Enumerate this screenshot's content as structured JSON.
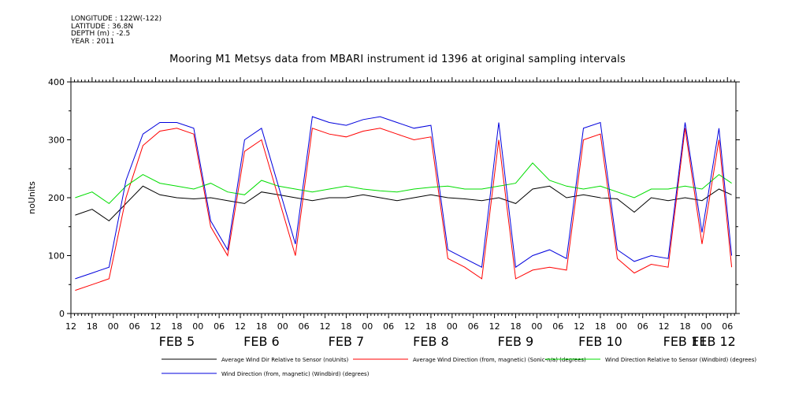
{
  "meta": {
    "longitude": "LONGITUDE : 122W(-122)",
    "latitude": "LATITUDE : 36.8N",
    "depth": "DEPTH (m) : -2.5",
    "year": "YEAR : 2011"
  },
  "chart_data": {
    "type": "line",
    "title": "Mooring M1 Metsys data from MBARI instrument id 1396 at original sampling intervals",
    "ylabel": "noUnits",
    "xlabel": "",
    "ylim": [
      0,
      400
    ],
    "yticks": [
      0,
      100,
      200,
      300,
      400
    ],
    "xlim": [
      4.25,
      12.1
    ],
    "xtick_labels": [
      "12",
      "18",
      "00",
      "06",
      "12",
      "18",
      "00",
      "06",
      "12",
      "18",
      "00",
      "06",
      "12",
      "18",
      "00",
      "06",
      "12",
      "18",
      "00",
      "06",
      "12",
      "18",
      "00",
      "06",
      "12",
      "18",
      "00",
      "06",
      "12",
      "18",
      "00",
      "06"
    ],
    "day_labels": [
      "FEB  5",
      "FEB  6",
      "FEB  7",
      "FEB  8",
      "FEB  9",
      "FEB 10",
      "FEB 11",
      "FEB 12"
    ],
    "legend_placement": "bottom",
    "grid": false,
    "series": [
      {
        "name": "Average Wind Dir Relative to Sensor (noUnits)",
        "color": "#000000",
        "x": [
          4.3,
          4.5,
          4.7,
          4.9,
          5.1,
          5.3,
          5.5,
          5.7,
          5.9,
          6.1,
          6.3,
          6.5,
          6.7,
          6.9,
          7.1,
          7.3,
          7.5,
          7.7,
          7.9,
          8.1,
          8.3,
          8.5,
          8.7,
          8.9,
          9.1,
          9.3,
          9.5,
          9.7,
          9.9,
          10.1,
          10.3,
          10.5,
          10.7,
          10.9,
          11.1,
          11.3,
          11.5,
          11.7,
          11.9,
          12.05
        ],
        "values": [
          170,
          180,
          160,
          190,
          220,
          205,
          200,
          198,
          200,
          195,
          190,
          210,
          205,
          200,
          195,
          200,
          200,
          205,
          200,
          195,
          200,
          205,
          200,
          198,
          195,
          200,
          190,
          215,
          220,
          200,
          205,
          200,
          198,
          175,
          200,
          195,
          200,
          195,
          215,
          205
        ]
      },
      {
        "name": "Average Wind Direction (from, magnetic) (Sonic-n/a) (degrees)",
        "color": "#ff0000",
        "x": [
          4.3,
          4.5,
          4.7,
          4.9,
          5.1,
          5.3,
          5.5,
          5.7,
          5.9,
          6.1,
          6.3,
          6.5,
          6.7,
          6.9,
          7.1,
          7.3,
          7.5,
          7.7,
          7.9,
          8.1,
          8.3,
          8.5,
          8.7,
          8.9,
          9.1,
          9.3,
          9.5,
          9.7,
          9.9,
          10.1,
          10.3,
          10.5,
          10.7,
          10.9,
          11.1,
          11.3,
          11.5,
          11.7,
          11.9,
          12.05
        ],
        "values": [
          40,
          50,
          60,
          200,
          290,
          315,
          320,
          310,
          150,
          100,
          280,
          300,
          200,
          100,
          320,
          310,
          305,
          315,
          320,
          310,
          300,
          305,
          95,
          80,
          60,
          300,
          60,
          75,
          80,
          75,
          300,
          310,
          95,
          70,
          85,
          80,
          320,
          120,
          300,
          80
        ]
      },
      {
        "name": "Wind Direction Relative to Sensor (Windbird) (degrees)",
        "color": "#00dd00",
        "x": [
          4.3,
          4.5,
          4.7,
          4.9,
          5.1,
          5.3,
          5.5,
          5.7,
          5.9,
          6.1,
          6.3,
          6.5,
          6.7,
          6.9,
          7.1,
          7.3,
          7.5,
          7.7,
          7.9,
          8.1,
          8.3,
          8.5,
          8.7,
          8.9,
          9.1,
          9.3,
          9.5,
          9.7,
          9.9,
          10.1,
          10.3,
          10.5,
          10.7,
          10.9,
          11.1,
          11.3,
          11.5,
          11.7,
          11.9,
          12.05
        ],
        "values": [
          200,
          210,
          190,
          220,
          240,
          225,
          220,
          215,
          225,
          210,
          205,
          230,
          220,
          215,
          210,
          215,
          220,
          215,
          212,
          210,
          215,
          218,
          220,
          215,
          215,
          220,
          225,
          260,
          230,
          220,
          215,
          220,
          210,
          200,
          215,
          215,
          220,
          215,
          240,
          225
        ]
      },
      {
        "name": "Wind Direction (from, magnetic) (Windbird) (degrees)",
        "color": "#0000dd",
        "x": [
          4.3,
          4.5,
          4.7,
          4.9,
          5.1,
          5.3,
          5.5,
          5.7,
          5.9,
          6.1,
          6.3,
          6.5,
          6.7,
          6.9,
          7.1,
          7.3,
          7.5,
          7.7,
          7.9,
          8.1,
          8.3,
          8.5,
          8.7,
          8.9,
          9.1,
          9.3,
          9.5,
          9.7,
          9.9,
          10.1,
          10.3,
          10.5,
          10.7,
          10.9,
          11.1,
          11.3,
          11.5,
          11.7,
          11.9,
          12.05
        ],
        "values": [
          60,
          70,
          80,
          230,
          310,
          330,
          330,
          320,
          160,
          110,
          300,
          320,
          220,
          120,
          340,
          330,
          325,
          335,
          340,
          330,
          320,
          325,
          110,
          95,
          80,
          330,
          80,
          100,
          110,
          95,
          320,
          330,
          110,
          90,
          100,
          95,
          330,
          140,
          320,
          100
        ]
      }
    ]
  }
}
